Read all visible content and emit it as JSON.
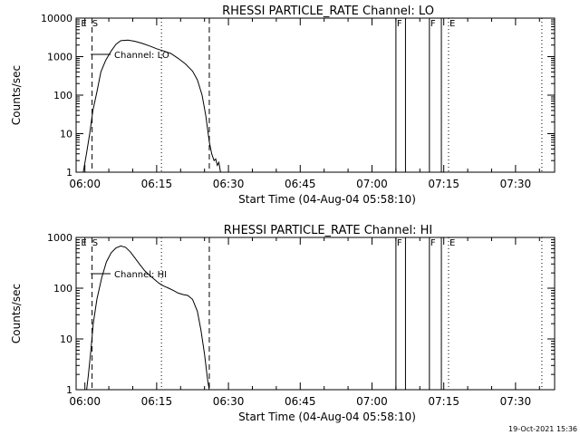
{
  "chart_data": [
    {
      "type": "line",
      "title": "RHESSI PARTICLE_RATE Channel: LO",
      "xlabel": "Start Time (04-Aug-04 05:58:10)",
      "ylabel": "Counts/sec",
      "x_ticks": [
        "06:00",
        "06:15",
        "06:30",
        "06:45",
        "07:00",
        "07:15",
        "07:30"
      ],
      "y_ticks": [
        "1",
        "10",
        "100",
        "1000",
        "10000"
      ],
      "x_range_minutes": [
        "05:58:10",
        "07:38:10"
      ],
      "ylim": [
        1,
        10000
      ],
      "y_scale": "log",
      "flag_labels": [
        {
          "text": "E",
          "t": "05:59:00"
        },
        {
          "text": "S",
          "t": "06:01:20"
        },
        {
          "text": "F",
          "t": "07:05:00"
        },
        {
          "text": "F",
          "t": "07:12:00"
        },
        {
          "text": "E",
          "t": "07:16:00"
        }
      ],
      "dashed_lines": [
        "06:01:30",
        "06:26:00"
      ],
      "dotted_lines": [
        "06:16:00",
        "07:16:00",
        "07:35:30"
      ],
      "solid_lines": [
        "07:05:00",
        "07:07:00",
        "07:12:00",
        "07:14:30"
      ],
      "series": [
        {
          "name": "Channel: LO",
          "points": [
            [
              "05:59:00",
              0.6
            ],
            [
              "05:59:40",
              1.0
            ],
            [
              "06:00:20",
              3
            ],
            [
              "06:01:00",
              10
            ],
            [
              "06:01:40",
              40
            ],
            [
              "06:02:30",
              120
            ],
            [
              "06:03:20",
              400
            ],
            [
              "06:04:20",
              800
            ],
            [
              "06:05:30",
              1400
            ],
            [
              "06:06:30",
              2100
            ],
            [
              "06:07:30",
              2600
            ],
            [
              "06:09:00",
              2700
            ],
            [
              "06:10:30",
              2500
            ],
            [
              "06:12:00",
              2200
            ],
            [
              "06:13:30",
              1900
            ],
            [
              "06:15:00",
              1600
            ],
            [
              "06:16:30",
              1400
            ],
            [
              "06:18:00",
              1200
            ],
            [
              "06:19:30",
              900
            ],
            [
              "06:21:00",
              650
            ],
            [
              "06:22:30",
              420
            ],
            [
              "06:23:30",
              250
            ],
            [
              "06:24:30",
              100
            ],
            [
              "06:25:15",
              30
            ],
            [
              "06:26:00",
              6
            ],
            [
              "06:26:30",
              3
            ],
            [
              "06:27:00",
              2
            ],
            [
              "06:27:20",
              2.2
            ],
            [
              "06:27:40",
              1.5
            ],
            [
              "06:28:00",
              1.8
            ],
            [
              "06:28:20",
              1.0
            ],
            [
              "06:28:50",
              0.6
            ]
          ]
        }
      ]
    },
    {
      "type": "line",
      "title": "RHESSI PARTICLE_RATE Channel: HI",
      "xlabel": "Start Time (04-Aug-04 05:58:10)",
      "ylabel": "Counts/sec",
      "x_ticks": [
        "06:00",
        "06:15",
        "06:30",
        "06:45",
        "07:00",
        "07:15",
        "07:30"
      ],
      "y_ticks": [
        "1",
        "10",
        "100",
        "1000"
      ],
      "x_range_minutes": [
        "05:58:10",
        "07:38:10"
      ],
      "ylim": [
        1,
        1000
      ],
      "y_scale": "log",
      "flag_labels": [
        {
          "text": "E",
          "t": "05:59:00"
        },
        {
          "text": "S",
          "t": "06:01:20"
        },
        {
          "text": "F",
          "t": "07:05:00"
        },
        {
          "text": "F",
          "t": "07:12:00"
        },
        {
          "text": "E",
          "t": "07:16:00"
        }
      ],
      "dashed_lines": [
        "06:01:30",
        "06:26:00"
      ],
      "dotted_lines": [
        "06:16:00",
        "07:16:00",
        "07:35:30"
      ],
      "solid_lines": [
        "07:05:00",
        "07:07:00",
        "07:12:00",
        "07:14:30"
      ],
      "series": [
        {
          "name": "Channel: HI",
          "points": [
            [
              "06:00:15",
              0.8
            ],
            [
              "06:00:45",
              2
            ],
            [
              "06:01:15",
              6
            ],
            [
              "06:01:45",
              20
            ],
            [
              "06:02:30",
              60
            ],
            [
              "06:03:30",
              160
            ],
            [
              "06:04:30",
              330
            ],
            [
              "06:05:30",
              500
            ],
            [
              "06:06:30",
              620
            ],
            [
              "06:07:30",
              680
            ],
            [
              "06:08:30",
              640
            ],
            [
              "06:09:30",
              520
            ],
            [
              "06:10:30",
              390
            ],
            [
              "06:11:30",
              290
            ],
            [
              "06:12:30",
              220
            ],
            [
              "06:13:30",
              180
            ],
            [
              "06:14:30",
              150
            ],
            [
              "06:15:30",
              125
            ],
            [
              "06:16:30",
              110
            ],
            [
              "06:17:30",
              100
            ],
            [
              "06:18:30",
              90
            ],
            [
              "06:19:30",
              80
            ],
            [
              "06:20:30",
              75
            ],
            [
              "06:21:30",
              72
            ],
            [
              "06:22:30",
              60
            ],
            [
              "06:23:30",
              35
            ],
            [
              "06:24:15",
              15
            ],
            [
              "06:25:00",
              5
            ],
            [
              "06:25:40",
              1.5
            ],
            [
              "06:26:10",
              0.8
            ]
          ]
        }
      ]
    }
  ],
  "footer": {
    "timestamp": "19-Oct-2021 15:36"
  }
}
